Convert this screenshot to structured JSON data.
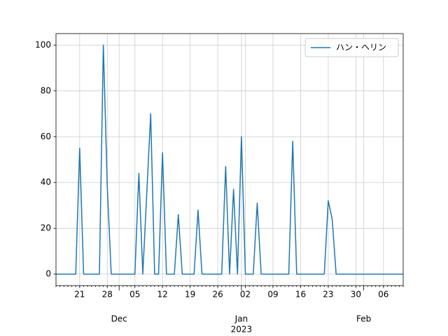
{
  "chart_data": {
    "type": "line",
    "x": [
      "2022-11-15",
      "2022-11-16",
      "2022-11-17",
      "2022-11-18",
      "2022-11-19",
      "2022-11-20",
      "2022-11-21",
      "2022-11-22",
      "2022-11-23",
      "2022-11-24",
      "2022-11-25",
      "2022-11-26",
      "2022-11-27",
      "2022-11-28",
      "2022-11-29",
      "2022-11-30",
      "2022-12-01",
      "2022-12-02",
      "2022-12-03",
      "2022-12-04",
      "2022-12-05",
      "2022-12-06",
      "2022-12-07",
      "2022-12-08",
      "2022-12-09",
      "2022-12-10",
      "2022-12-11",
      "2022-12-12",
      "2022-12-13",
      "2022-12-14",
      "2022-12-15",
      "2022-12-16",
      "2022-12-17",
      "2022-12-18",
      "2022-12-19",
      "2022-12-20",
      "2022-12-21",
      "2022-12-22",
      "2022-12-23",
      "2022-12-24",
      "2022-12-25",
      "2022-12-26",
      "2022-12-27",
      "2022-12-28",
      "2022-12-29",
      "2022-12-30",
      "2022-12-31",
      "2023-01-01",
      "2023-01-02",
      "2023-01-03",
      "2023-01-04",
      "2023-01-05",
      "2023-01-06",
      "2023-01-07",
      "2023-01-08",
      "2023-01-09",
      "2023-01-10",
      "2023-01-11",
      "2023-01-12",
      "2023-01-13",
      "2023-01-14",
      "2023-01-15",
      "2023-01-16",
      "2023-01-17",
      "2023-01-18",
      "2023-01-19",
      "2023-01-20",
      "2023-01-21",
      "2023-01-22",
      "2023-01-23",
      "2023-01-24",
      "2023-01-25",
      "2023-01-26",
      "2023-01-27",
      "2023-01-28",
      "2023-01-29",
      "2023-01-30",
      "2023-01-31",
      "2023-02-01",
      "2023-02-02",
      "2023-02-03",
      "2023-02-04",
      "2023-02-05",
      "2023-02-06",
      "2023-02-07",
      "2023-02-08",
      "2023-02-09",
      "2023-02-10",
      "2023-02-11"
    ],
    "series": [
      {
        "name": "ハン・ヘリン",
        "color": "#1f77b4",
        "values": [
          0,
          0,
          0,
          0,
          0,
          0,
          55,
          0,
          0,
          0,
          0,
          0,
          100,
          38,
          0,
          0,
          0,
          0,
          0,
          0,
          0,
          44,
          0,
          35,
          70,
          0,
          0,
          53,
          0,
          0,
          0,
          26,
          0,
          0,
          0,
          0,
          28,
          0,
          0,
          0,
          0,
          0,
          0,
          47,
          0,
          37,
          0,
          60,
          0,
          0,
          0,
          31,
          0,
          0,
          0,
          0,
          0,
          0,
          0,
          0,
          58,
          0,
          0,
          0,
          0,
          0,
          0,
          0,
          0,
          32,
          24,
          0,
          0,
          0,
          0,
          0,
          0,
          0,
          0,
          0,
          0,
          0,
          0,
          0,
          0,
          0,
          0,
          0,
          0
        ]
      }
    ],
    "xlim": [
      "2022-11-15",
      "2023-02-11"
    ],
    "xticks": [
      {
        "value": "2022-11-21",
        "label": "21"
      },
      {
        "value": "2022-11-28",
        "label": "28"
      },
      {
        "value": "2022-12-05",
        "label": "05"
      },
      {
        "value": "2022-12-12",
        "label": "12"
      },
      {
        "value": "2022-12-19",
        "label": "19"
      },
      {
        "value": "2022-12-26",
        "label": "26"
      },
      {
        "value": "2023-01-02",
        "label": "02"
      },
      {
        "value": "2023-01-09",
        "label": "09"
      },
      {
        "value": "2023-01-16",
        "label": "16"
      },
      {
        "value": "2023-01-23",
        "label": "23"
      },
      {
        "value": "2023-01-30",
        "label": "30"
      },
      {
        "value": "2023-02-06",
        "label": "06"
      }
    ],
    "month_ticks": [
      {
        "value": "2022-12-01",
        "label": "Dec"
      },
      {
        "value": "2023-01-01",
        "label": "Jan"
      },
      {
        "value": "2023-02-01",
        "label": "Feb"
      }
    ],
    "year_ticks": [
      {
        "value": "2023-01-01",
        "label": "2023"
      }
    ],
    "ylim": [
      -5,
      105
    ],
    "yticks": [
      0,
      20,
      40,
      60,
      80,
      100
    ],
    "grid": true,
    "legend": "upper right"
  }
}
